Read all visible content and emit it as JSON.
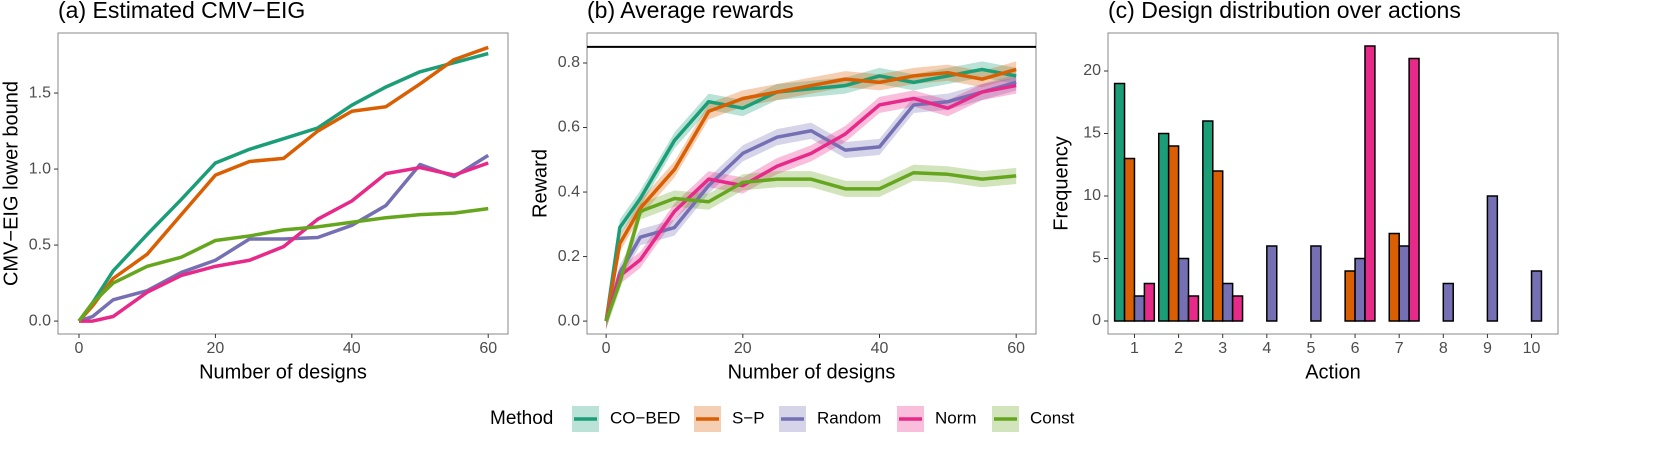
{
  "chart_data": [
    {
      "type": "line",
      "title": "(a) Estimated CMV−EIG",
      "x_label": "Number of designs",
      "y_label": "CMV−EIG lower bound",
      "x": [
        0,
        2,
        5,
        10,
        15,
        20,
        25,
        30,
        35,
        40,
        45,
        50,
        55,
        60
      ],
      "xlim": [
        -3.08,
        62.9
      ],
      "ylim": [
        -0.085,
        1.895
      ],
      "xticks": [
        0,
        20,
        40,
        60
      ],
      "yticks": [
        {
          "value": 0,
          "label": "0.0"
        },
        {
          "value": 0.5,
          "label": "0.5"
        },
        {
          "value": 1,
          "label": "1.0"
        },
        {
          "value": 1.5,
          "label": "1.5"
        }
      ],
      "series": [
        {
          "name": "CO−BED",
          "color": "#1b9e77",
          "values": [
            0,
            0.12,
            0.33,
            0.57,
            0.8,
            1.04,
            1.13,
            1.2,
            1.27,
            1.42,
            1.54,
            1.64,
            1.7,
            1.76
          ]
        },
        {
          "name": "S−P",
          "color": "#d95f02",
          "values": [
            0,
            0.1,
            0.28,
            0.44,
            0.7,
            0.96,
            1.05,
            1.07,
            1.25,
            1.38,
            1.41,
            1.56,
            1.72,
            1.8
          ]
        },
        {
          "name": "Random",
          "color": "#7570b3",
          "values": [
            0,
            0.03,
            0.14,
            0.2,
            0.32,
            0.4,
            0.54,
            0.54,
            0.55,
            0.63,
            0.76,
            1.03,
            0.95,
            1.09
          ]
        },
        {
          "name": "Norm",
          "color": "#e7298a",
          "values": [
            0,
            0,
            0.03,
            0.19,
            0.3,
            0.36,
            0.4,
            0.49,
            0.67,
            0.79,
            0.97,
            1.01,
            0.96,
            1.04
          ]
        },
        {
          "name": "Const",
          "color": "#66a61e",
          "values": [
            0,
            0.12,
            0.25,
            0.36,
            0.42,
            0.53,
            0.56,
            0.6,
            0.62,
            0.65,
            0.68,
            0.7,
            0.71,
            0.74
          ]
        }
      ]
    },
    {
      "type": "ribbon_line",
      "title": "(b) Average rewards",
      "x_label": "Number of designs",
      "y_label": "Reward",
      "x": [
        0,
        2,
        5,
        10,
        15,
        20,
        25,
        30,
        35,
        40,
        45,
        50,
        55,
        60
      ],
      "xlim": [
        -2.8,
        62.9
      ],
      "ylim": [
        -0.04,
        0.893
      ],
      "hline": 0.85,
      "xticks": [
        0,
        20,
        40,
        60
      ],
      "yticks": [
        {
          "value": 0,
          "label": "0.0"
        },
        {
          "value": 0.2,
          "label": "0.2"
        },
        {
          "value": 0.4,
          "label": "0.4"
        },
        {
          "value": 0.6,
          "label": "0.6"
        },
        {
          "value": 0.8,
          "label": "0.8"
        }
      ],
      "series": [
        {
          "name": "CO−BED",
          "color": "#1b9e77",
          "ci": 0.025,
          "values": [
            0,
            0.29,
            0.38,
            0.56,
            0.68,
            0.66,
            0.71,
            0.72,
            0.73,
            0.76,
            0.74,
            0.76,
            0.78,
            0.76
          ]
        },
        {
          "name": "S−P",
          "color": "#d95f02",
          "ci": 0.025,
          "values": [
            0,
            0.24,
            0.35,
            0.47,
            0.65,
            0.69,
            0.71,
            0.73,
            0.75,
            0.74,
            0.76,
            0.77,
            0.75,
            0.78
          ]
        },
        {
          "name": "Random",
          "color": "#7570b3",
          "ci": 0.025,
          "values": [
            0,
            0.15,
            0.26,
            0.29,
            0.42,
            0.52,
            0.57,
            0.59,
            0.53,
            0.54,
            0.67,
            0.68,
            0.71,
            0.74
          ]
        },
        {
          "name": "Norm",
          "color": "#e7298a",
          "ci": 0.025,
          "values": [
            0,
            0.14,
            0.19,
            0.34,
            0.44,
            0.42,
            0.48,
            0.52,
            0.58,
            0.67,
            0.69,
            0.66,
            0.71,
            0.73
          ]
        },
        {
          "name": "Const",
          "color": "#66a61e",
          "ci": 0.025,
          "values": [
            0,
            0.12,
            0.34,
            0.38,
            0.37,
            0.43,
            0.44,
            0.44,
            0.41,
            0.41,
            0.46,
            0.455,
            0.44,
            0.45
          ]
        }
      ]
    },
    {
      "type": "grouped_bar",
      "title": "(c) Design distribution over actions",
      "x_label": "Action",
      "y_label": "Frequency",
      "categories": [
        "1",
        "2",
        "3",
        "4",
        "5",
        "6",
        "7",
        "8",
        "9",
        "10"
      ],
      "ylim": [
        -1.04,
        23.04
      ],
      "yticks": [
        0,
        5,
        10,
        15,
        20
      ],
      "series": [
        {
          "name": "CO−BED",
          "color": "#1b9e77",
          "values": [
            19,
            15,
            16,
            0,
            0,
            0,
            0,
            0,
            0,
            0
          ]
        },
        {
          "name": "S−P",
          "color": "#d95f02",
          "values": [
            13,
            14,
            12,
            0,
            0,
            4,
            7,
            0,
            0,
            0
          ]
        },
        {
          "name": "Random",
          "color": "#7570b3",
          "values": [
            2,
            5,
            3,
            6,
            6,
            5,
            6,
            3,
            10,
            4
          ]
        },
        {
          "name": "Norm",
          "color": "#e7298a",
          "values": [
            3,
            2,
            2,
            0,
            0,
            22,
            21,
            0,
            0,
            0
          ]
        }
      ]
    }
  ],
  "legend": {
    "title": "Method"
  }
}
